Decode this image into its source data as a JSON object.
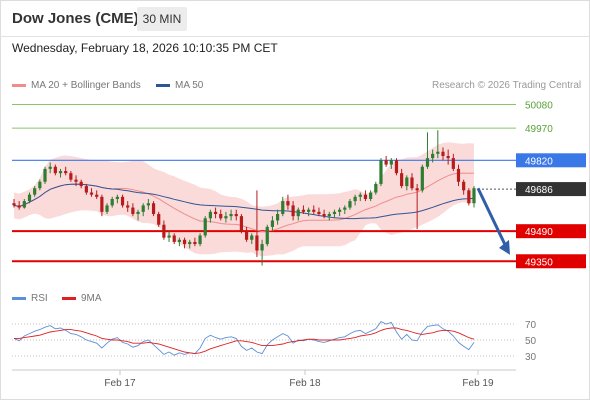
{
  "header": {
    "title": "Dow Jones (CME)",
    "timeframe": "30 MIN"
  },
  "timestamp": "Wednesday, February 18, 2026 10:10:35 PM CET",
  "legend": {
    "ma20": {
      "label": "MA 20 + Bollinger Bands",
      "color": "#f28c8c"
    },
    "ma50": {
      "label": "MA 50",
      "color": "#2f5597"
    },
    "rsi": {
      "label": "RSI",
      "color": "#5b8fd9"
    },
    "ma9": {
      "label": "9MA",
      "color": "#e02020"
    }
  },
  "credit": "Research © 2026 Trading Central",
  "colors": {
    "up": "#2e7d32",
    "down": "#b71c1c",
    "band": "#fbd6d6",
    "pivot": "#3b78e7",
    "support": "#e00000",
    "resistance": "#8cc46a",
    "arrow": "#2f5fa8"
  },
  "chart_data": [
    {
      "type": "candlestick",
      "title": "",
      "ylim": [
        49300,
        50110
      ],
      "x_ticks": [
        "Feb 17",
        "Feb 18",
        "Feb 19"
      ],
      "levels": [
        {
          "value": 50080,
          "label": "50080",
          "kind": "resistance"
        },
        {
          "value": 49970,
          "label": "49970",
          "kind": "resistance"
        },
        {
          "value": 49820,
          "label": "49820",
          "kind": "pivot"
        },
        {
          "value": 49686,
          "label": "49686",
          "kind": "last"
        },
        {
          "value": 49490,
          "label": "49490",
          "kind": "support"
        },
        {
          "value": 49350,
          "label": "49350",
          "kind": "support"
        }
      ],
      "forecast_arrow": {
        "from": 49690,
        "to": 49380
      },
      "ohlc": [
        [
          49620,
          49640,
          49600,
          49610
        ],
        [
          49610,
          49630,
          49590,
          49600
        ],
        [
          49600,
          49640,
          49595,
          49630
        ],
        [
          49630,
          49670,
          49620,
          49660
        ],
        [
          49660,
          49700,
          49650,
          49690
        ],
        [
          49690,
          49730,
          49680,
          49720
        ],
        [
          49720,
          49790,
          49710,
          49780
        ],
        [
          49780,
          49810,
          49760,
          49790
        ],
        [
          49790,
          49800,
          49750,
          49760
        ],
        [
          49760,
          49780,
          49740,
          49770
        ],
        [
          49770,
          49790,
          49750,
          49760
        ],
        [
          49760,
          49770,
          49720,
          49730
        ],
        [
          49730,
          49750,
          49700,
          49720
        ],
        [
          49720,
          49730,
          49690,
          49700
        ],
        [
          49700,
          49710,
          49660,
          49670
        ],
        [
          49670,
          49690,
          49650,
          49660
        ],
        [
          49660,
          49680,
          49640,
          49650
        ],
        [
          49650,
          49660,
          49560,
          49580
        ],
        [
          49580,
          49620,
          49570,
          49610
        ],
        [
          49610,
          49650,
          49600,
          49640
        ],
        [
          49640,
          49660,
          49620,
          49650
        ],
        [
          49650,
          49660,
          49600,
          49610
        ],
        [
          49610,
          49630,
          49580,
          49600
        ],
        [
          49600,
          49620,
          49560,
          49570
        ],
        [
          49570,
          49590,
          49540,
          49580
        ],
        [
          49580,
          49620,
          49560,
          49610
        ],
        [
          49610,
          49640,
          49590,
          49620
        ],
        [
          49620,
          49630,
          49560,
          49570
        ],
        [
          49570,
          49580,
          49510,
          49520
        ],
        [
          49520,
          49540,
          49450,
          49460
        ],
        [
          49460,
          49490,
          49440,
          49470
        ],
        [
          49470,
          49480,
          49430,
          49440
        ],
        [
          49440,
          49460,
          49420,
          49450
        ],
        [
          49450,
          49460,
          49410,
          49430
        ],
        [
          49430,
          49450,
          49410,
          49440
        ],
        [
          49440,
          49460,
          49420,
          49430
        ],
        [
          49430,
          49480,
          49420,
          49470
        ],
        [
          49470,
          49560,
          49460,
          49550
        ],
        [
          49550,
          49590,
          49530,
          49580
        ],
        [
          49580,
          49600,
          49550,
          49570
        ],
        [
          49570,
          49590,
          49540,
          49550
        ],
        [
          49550,
          49580,
          49530,
          49560
        ],
        [
          49560,
          49590,
          49540,
          49570
        ],
        [
          49570,
          49590,
          49540,
          49560
        ],
        [
          49560,
          49570,
          49480,
          49490
        ],
        [
          49490,
          49510,
          49440,
          49450
        ],
        [
          49450,
          49480,
          49430,
          49470
        ],
        [
          49470,
          49680,
          49370,
          49400
        ],
        [
          49400,
          49450,
          49330,
          49430
        ],
        [
          49430,
          49520,
          49420,
          49510
        ],
        [
          49510,
          49560,
          49490,
          49540
        ],
        [
          49540,
          49590,
          49520,
          49570
        ],
        [
          49570,
          49650,
          49560,
          49630
        ],
        [
          49630,
          49660,
          49590,
          49610
        ],
        [
          49610,
          49630,
          49540,
          49560
        ],
        [
          49560,
          49600,
          49540,
          49590
        ],
        [
          49590,
          49610,
          49570,
          49580
        ],
        [
          49580,
          49600,
          49560,
          49590
        ],
        [
          49590,
          49610,
          49570,
          49580
        ],
        [
          49580,
          49600,
          49560,
          49570
        ],
        [
          49570,
          49590,
          49550,
          49560
        ],
        [
          49560,
          49580,
          49540,
          49570
        ],
        [
          49570,
          49590,
          49550,
          49580
        ],
        [
          49580,
          49600,
          49560,
          49590
        ],
        [
          49590,
          49610,
          49570,
          49600
        ],
        [
          49600,
          49640,
          49590,
          49630
        ],
        [
          49630,
          49660,
          49610,
          49650
        ],
        [
          49650,
          49670,
          49630,
          49660
        ],
        [
          49660,
          49680,
          49630,
          49640
        ],
        [
          49640,
          49680,
          49630,
          49670
        ],
        [
          49670,
          49720,
          49660,
          49710
        ],
        [
          49710,
          49830,
          49700,
          49820
        ],
        [
          49820,
          49840,
          49790,
          49800
        ],
        [
          49800,
          49830,
          49780,
          49820
        ],
        [
          49820,
          49830,
          49750,
          49760
        ],
        [
          49760,
          49780,
          49690,
          49700
        ],
        [
          49700,
          49750,
          49680,
          49740
        ],
        [
          49740,
          49760,
          49680,
          49690
        ],
        [
          49690,
          49710,
          49500,
          49680
        ],
        [
          49680,
          49800,
          49670,
          49790
        ],
        [
          49790,
          49950,
          49780,
          49830
        ],
        [
          49830,
          49870,
          49810,
          49850
        ],
        [
          49850,
          49960,
          49830,
          49860
        ],
        [
          49860,
          49880,
          49820,
          49840
        ],
        [
          49840,
          49870,
          49800,
          49830
        ],
        [
          49830,
          49850,
          49770,
          49780
        ],
        [
          49780,
          49800,
          49700,
          49720
        ],
        [
          49720,
          49730,
          49660,
          49680
        ],
        [
          49680,
          49690,
          49610,
          49620
        ],
        [
          49620,
          49700,
          49600,
          49690
        ]
      ]
    },
    {
      "type": "line",
      "title": "",
      "ylim": [
        20,
        80
      ],
      "y_ticks": [
        70,
        50,
        30
      ],
      "series": [
        {
          "name": "RSI",
          "values": [
            52,
            49,
            55,
            58,
            61,
            63,
            66,
            68,
            64,
            65,
            62,
            58,
            57,
            54,
            50,
            48,
            46,
            40,
            46,
            51,
            53,
            47,
            45,
            41,
            43,
            48,
            50,
            44,
            38,
            32,
            35,
            31,
            34,
            32,
            34,
            33,
            40,
            52,
            56,
            53,
            51,
            53,
            54,
            52,
            42,
            37,
            40,
            35,
            33,
            44,
            50,
            54,
            58,
            55,
            46,
            50,
            49,
            51,
            50,
            48,
            47,
            49,
            51,
            53,
            54,
            58,
            61,
            62,
            58,
            61,
            64,
            73,
            70,
            72,
            60,
            51,
            57,
            50,
            49,
            60,
            67,
            68,
            69,
            64,
            61,
            55,
            47,
            42,
            38,
            47
          ]
        },
        {
          "name": "9MA",
          "values": [
            52,
            52,
            53,
            54,
            55,
            56,
            58,
            60,
            61,
            62,
            63,
            63,
            62,
            61,
            59,
            57,
            55,
            52,
            51,
            50,
            50,
            49,
            48,
            46,
            46,
            46,
            47,
            46,
            45,
            43,
            41,
            39,
            37,
            35,
            34,
            33,
            34,
            36,
            39,
            41,
            43,
            45,
            47,
            49,
            49,
            48,
            47,
            45,
            43,
            43,
            43,
            44,
            45,
            47,
            48,
            49,
            50,
            51,
            51,
            50,
            50,
            50,
            50,
            50,
            51,
            52,
            53,
            55,
            56,
            57,
            59,
            62,
            64,
            65,
            65,
            63,
            62,
            60,
            58,
            57,
            58,
            59,
            61,
            62,
            62,
            61,
            59,
            56,
            53,
            51
          ]
        }
      ]
    }
  ]
}
